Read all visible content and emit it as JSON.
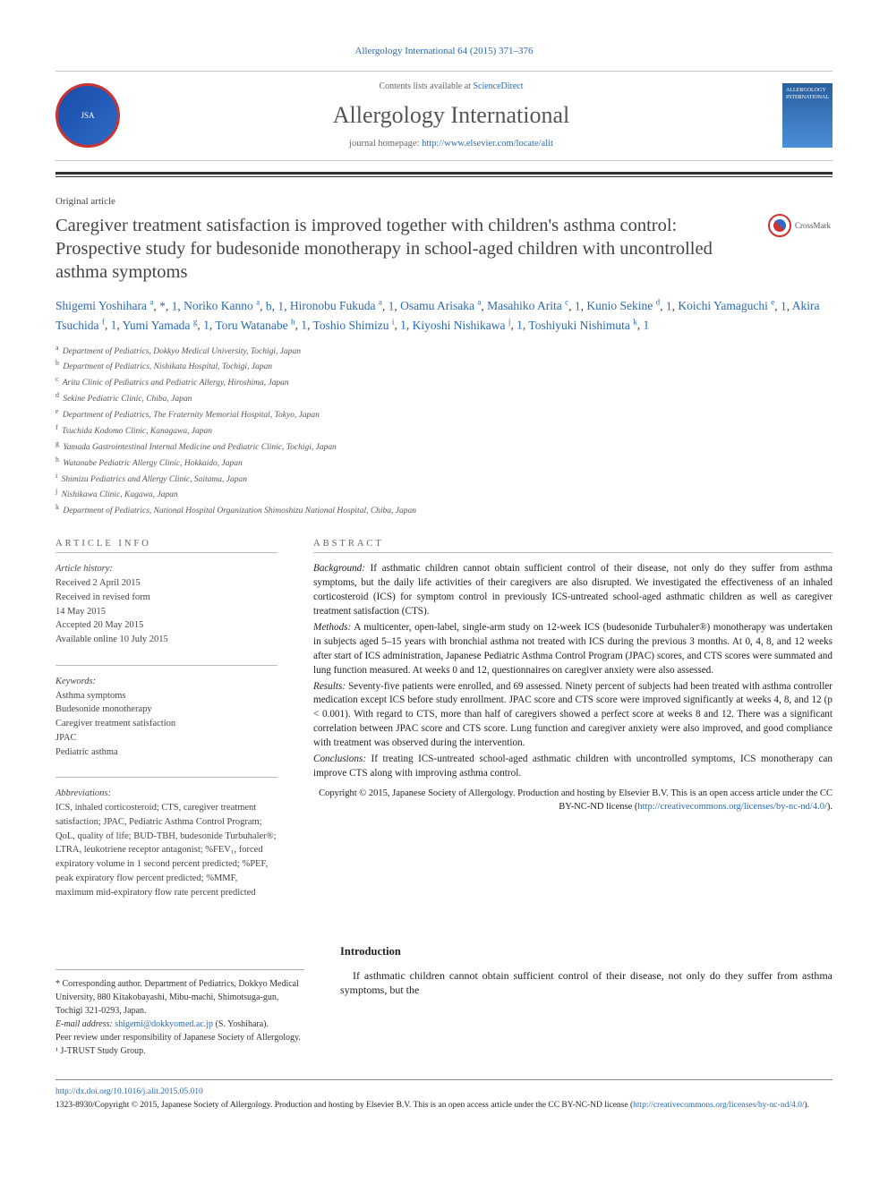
{
  "cite": "Allergology International 64 (2015) 371–376",
  "header": {
    "contents_prefix": "Contents lists available at ",
    "contents_link": "ScienceDirect",
    "journal": "Allergology International",
    "homepage_prefix": "journal homepage: ",
    "homepage_url": "http://www.elsevier.com/locate/alit",
    "society_logo_text": "JSA"
  },
  "article_type": "Original article",
  "title": "Caregiver treatment satisfaction is improved together with children's asthma control: Prospective study for budesonide monotherapy in school-aged children with uncontrolled asthma symptoms",
  "crossmark": "CrossMark",
  "authors_html": "Shigemi Yoshihara <sup>a, *, 1</sup>, Noriko Kanno <sup>a, b, 1</sup>, Hironobu Fukuda <sup>a, 1</sup>, Osamu Arisaka <sup>a</sup>, Masahiko Arita <sup>c, 1</sup>, Kunio Sekine <sup>d, 1</sup>, Koichi Yamaguchi <sup>e, 1</sup>, Akira Tsuchida <sup>f, 1</sup>, Yumi Yamada <sup>g, 1</sup>, Toru Watanabe <sup>h, 1</sup>, Toshio Shimizu <sup>i, 1</sup>, Kiyoshi Nishikawa <sup>j, 1</sup>, Toshiyuki Nishimuta <sup>k, 1</sup>",
  "affiliations": [
    {
      "sup": "a",
      "text": "Department of Pediatrics, Dokkyo Medical University, Tochigi, Japan"
    },
    {
      "sup": "b",
      "text": "Department of Pediatrics, Nishikata Hospital, Tochigi, Japan"
    },
    {
      "sup": "c",
      "text": "Arita Clinic of Pediatrics and Pediatric Allergy, Hiroshima, Japan"
    },
    {
      "sup": "d",
      "text": "Sekine Pediatric Clinic, Chiba, Japan"
    },
    {
      "sup": "e",
      "text": "Department of Pediatrics, The Fraternity Memorial Hospital, Tokyo, Japan"
    },
    {
      "sup": "f",
      "text": "Tsuchida Kodomo Clinic, Kanagawa, Japan"
    },
    {
      "sup": "g",
      "text": "Yamada Gastrointestinal Internal Medicine and Pediatric Clinic, Tochigi, Japan"
    },
    {
      "sup": "h",
      "text": "Watanabe Pediatric Allergy Clinic, Hokkaido, Japan"
    },
    {
      "sup": "i",
      "text": "Shimizu Pediatrics and Allergy Clinic, Saitama, Japan"
    },
    {
      "sup": "j",
      "text": "Nishikawa Clinic, Kagawa, Japan"
    },
    {
      "sup": "k",
      "text": "Department of Pediatrics, National Hospital Organization Shimoshizu National Hospital, Chiba, Japan"
    }
  ],
  "info": {
    "head": "ARTICLE INFO",
    "history_label": "Article history:",
    "history": [
      "Received 2 April 2015",
      "Received in revised form",
      "14 May 2015",
      "Accepted 20 May 2015",
      "Available online 10 July 2015"
    ],
    "keywords_label": "Keywords:",
    "keywords": [
      "Asthma symptoms",
      "Budesonide monotherapy",
      "Caregiver treatment satisfaction",
      "JPAC",
      "Pediatric asthma"
    ],
    "abbrev_label": "Abbreviations:",
    "abbrev": "ICS, inhaled corticosteroid; CTS, caregiver treatment satisfaction; JPAC, Pediatric Asthma Control Program; QoL, quality of life; BUD-TBH, budesonide Turbuhaler®; LTRA, leukotriene receptor antagonist; %FEV₁, forced expiratory volume in 1 second percent predicted; %PEF, peak expiratory flow percent predicted; %MMF, maximum mid-expiratory flow rate percent predicted"
  },
  "abstract": {
    "head": "ABSTRACT",
    "background_label": "Background:",
    "background": " If asthmatic children cannot obtain sufficient control of their disease, not only do they suffer from asthma symptoms, but the daily life activities of their caregivers are also disrupted. We investigated the effectiveness of an inhaled corticosteroid (ICS) for symptom control in previously ICS-untreated school-aged asthmatic children as well as caregiver treatment satisfaction (CTS).",
    "methods_label": "Methods:",
    "methods": " A multicenter, open-label, single-arm study on 12-week ICS (budesonide Turbuhaler®) monotherapy was undertaken in subjects aged 5–15 years with bronchial asthma not treated with ICS during the previous 3 months. At 0, 4, 8, and 12 weeks after start of ICS administration, Japanese Pediatric Asthma Control Program (JPAC) scores, and CTS scores were summated and lung function measured. At weeks 0 and 12, questionnaires on caregiver anxiety were also assessed.",
    "results_label": "Results:",
    "results": " Seventy-five patients were enrolled, and 69 assessed. Ninety percent of subjects had been treated with asthma controller medication except ICS before study enrollment. JPAC score and CTS score were improved significantly at weeks 4, 8, and 12 (p < 0.001). With regard to CTS, more than half of caregivers showed a perfect score at weeks 8 and 12. There was a significant correlation between JPAC score and CTS score. Lung function and caregiver anxiety were also improved, and good compliance with treatment was observed during the intervention.",
    "conclusions_label": "Conclusions:",
    "conclusions": " If treating ICS-untreated school-aged asthmatic children with uncontrolled symptoms, ICS monotherapy can improve CTS along with improving asthma control.",
    "copyright": "Copyright © 2015, Japanese Society of Allergology. Production and hosting by Elsevier B.V. This is an open access article under the CC BY-NC-ND license (",
    "license_url": "http://creativecommons.org/licenses/by-nc-nd/4.0/",
    "copyright_suffix": ")."
  },
  "footnotes": {
    "corr": "* Corresponding author. Department of Pediatrics, Dokkyo Medical University, 880 Kitakobayashi, Mibu-machi, Shimotsuga-gun, Tochigi 321-0293, Japan.",
    "email_label": "E-mail address: ",
    "email": "shigemi@dokkyomed.ac.jp",
    "email_who": " (S. Yoshihara).",
    "peer": "Peer review under responsibility of Japanese Society of Allergology.",
    "note1": "¹ J-TRUST Study Group."
  },
  "intro": {
    "head": "Introduction",
    "text": "If asthmatic children cannot obtain sufficient control of their disease, not only do they suffer from asthma symptoms, but the"
  },
  "bottom": {
    "doi": "http://dx.doi.org/10.1016/j.alit.2015.05.010",
    "issn": "1323-8930/Copyright © 2015, Japanese Society of Allergology. Production and hosting by Elsevier B.V. This is an open access article under the CC BY-NC-ND license (",
    "license_url": "http://creativecommons.org/licenses/by-nc-nd/4.0/",
    "suffix": ")."
  },
  "colors": {
    "link": "#2a6ab5",
    "rule": "#333333",
    "text": "#222222"
  }
}
